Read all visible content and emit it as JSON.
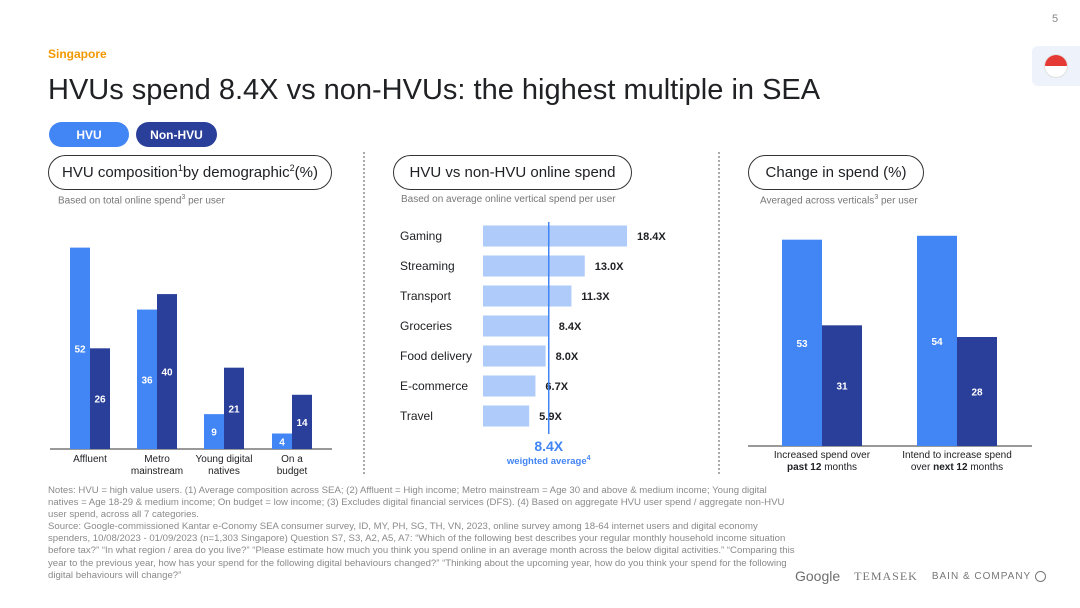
{
  "page_number": "5",
  "country": "Singapore",
  "title": "HVUs spend 8.4X vs non-HVUs: the highest multiple in SEA",
  "legend": {
    "hvu": "HVU",
    "non_hvu": "Non-HVU"
  },
  "colors": {
    "hvu": "#4285f4",
    "non_hvu": "#2a3f99",
    "spend_bar": "#aecbfa",
    "accent": "#f29900",
    "weighted": "#4285f4"
  },
  "sections": {
    "composition": {
      "title": "HVU composition",
      "sup1": "1",
      "title_mid": " by demographic",
      "sup2": "2",
      "title_end": " (%)",
      "note": "Based on total online spend",
      "note_sup": "3",
      "note_end": " per user"
    },
    "spend": {
      "title": "HVU vs non-HVU online spend",
      "note": "Based on average online vertical spend per user"
    },
    "change": {
      "title": "Change in spend (%)",
      "note": "Averaged across verticals",
      "note_sup": "3",
      "note_end": " per user"
    }
  },
  "chart_data": [
    {
      "type": "bar",
      "title": "HVU composition by demographic (%)",
      "categories": [
        [
          "Affluent"
        ],
        [
          "Metro",
          "mainstream"
        ],
        [
          "Young digital",
          "natives"
        ],
        [
          "On a",
          "budget"
        ]
      ],
      "series": [
        {
          "name": "HVU",
          "values": [
            52,
            36,
            9,
            4
          ]
        },
        {
          "name": "Non-HVU",
          "values": [
            26,
            40,
            21,
            14
          ]
        }
      ],
      "ylim": [
        0,
        55
      ]
    },
    {
      "type": "bar",
      "orientation": "horizontal",
      "title": "HVU vs non-HVU online spend",
      "categories": [
        "Gaming",
        "Streaming",
        "Transport",
        "Groceries",
        "Food delivery",
        "E-commerce",
        "Travel"
      ],
      "values": [
        18.4,
        13.0,
        11.3,
        8.4,
        8.0,
        6.7,
        5.9
      ],
      "value_labels": [
        "18.4X",
        "13.0X",
        "11.3X",
        "8.4X",
        "8.0X",
        "6.7X",
        "5.9X"
      ],
      "reference": {
        "value": 8.4,
        "label": "8.4X",
        "caption": "weighted average",
        "caption_sup": "4"
      },
      "xlim": [
        0,
        18.4
      ]
    },
    {
      "type": "bar",
      "title": "Change in spend (%)",
      "categories": [
        {
          "line1": "Increased spend over",
          "line2_bold": "past 12",
          "line2_rest": " months"
        },
        {
          "line1": "Intend to increase spend",
          "line2_pre": "over ",
          "line2_bold": "next 12",
          "line2_rest": " months"
        }
      ],
      "series": [
        {
          "name": "HVU",
          "values": [
            53,
            54
          ]
        },
        {
          "name": "Non-HVU",
          "values": [
            31,
            28
          ]
        }
      ],
      "ylim": [
        0,
        56
      ]
    }
  ],
  "footnotes": [
    "Notes: HVU = high value users. (1) Average composition across SEA; (2) Affluent = High income; Metro mainstream = Age 30 and above & medium income; Young digital natives = Age 18-29 & medium income; On budget = low income; (3) Excludes digital financial services (DFS). (4) Based on aggregate HVU user spend / aggregate non-HVU user spend, across all 7 categories.",
    "Source: Google-commissioned Kantar e-Conomy SEA consumer survey, ID, MY, PH, SG, TH, VN, 2023, online survey among 18-64 internet users and digital economy spenders, 10/08/2023 - 01/09/2023 (n=1,303 Singapore) Question S7, S3, A2, A5, A7: “Which of the following best describes your regular monthly household income situation before tax?” “In what region / area do you live?” “Please estimate how much you think you spend online in an average month across the below digital activities.” “Comparing this year to the previous year, how has your spend for the following digital behaviours changed?” “Thinking about the upcoming year, how do you think your spend for the following digital behaviours will change?”"
  ],
  "logos": {
    "google": "Google",
    "temasek": "TEMASEK",
    "bain": "BAIN & COMPANY"
  },
  "icons": {
    "flag": "singapore-flag-icon",
    "bain": "bain-mark-icon"
  }
}
